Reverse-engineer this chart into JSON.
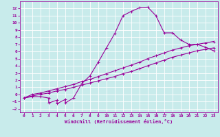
{
  "xlabel": "Windchill (Refroidissement éolien,°C)",
  "bg_color": "#c8ebeb",
  "line_color": "#990099",
  "grid_color": "#ffffff",
  "xlim": [
    -0.5,
    23.5
  ],
  "ylim": [
    -2.5,
    13.0
  ],
  "xticks": [
    0,
    1,
    2,
    3,
    4,
    5,
    6,
    7,
    8,
    9,
    10,
    11,
    12,
    13,
    14,
    15,
    16,
    17,
    18,
    19,
    20,
    21,
    22,
    23
  ],
  "yticks": [
    -2,
    -1,
    0,
    1,
    2,
    3,
    4,
    5,
    6,
    7,
    8,
    9,
    10,
    11,
    12
  ],
  "curve1_x": [
    0,
    1,
    2,
    3,
    3,
    4,
    4,
    5,
    5,
    6,
    7,
    8,
    9,
    10,
    11,
    12,
    13,
    14,
    15,
    16,
    17,
    18,
    19,
    20,
    21,
    22,
    23
  ],
  "curve1_y": [
    -0.5,
    -0.3,
    -0.3,
    -0.5,
    -1.2,
    -0.8,
    -1.3,
    -0.7,
    -1.2,
    -0.5,
    1.5,
    2.6,
    4.5,
    6.5,
    8.5,
    11.0,
    11.6,
    12.1,
    12.2,
    11.0,
    8.6,
    8.6,
    7.6,
    7.0,
    7.0,
    6.6,
    6.1
  ],
  "curve2_x": [
    0,
    1,
    2,
    3,
    4,
    5,
    6,
    7,
    8,
    9,
    10,
    11,
    12,
    13,
    14,
    15,
    16,
    17,
    18,
    19,
    20,
    21,
    22,
    23
  ],
  "curve2_y": [
    -0.5,
    -0.2,
    0.0,
    0.2,
    0.5,
    0.7,
    1.0,
    1.3,
    1.6,
    1.9,
    2.2,
    2.5,
    2.9,
    3.2,
    3.6,
    4.0,
    4.4,
    4.8,
    5.2,
    5.5,
    5.8,
    6.1,
    6.3,
    6.5
  ],
  "curve3_x": [
    0,
    1,
    2,
    3,
    4,
    5,
    6,
    7,
    8,
    9,
    10,
    11,
    12,
    13,
    14,
    15,
    16,
    17,
    18,
    19,
    20,
    21,
    22,
    23
  ],
  "curve3_y": [
    -0.5,
    0.0,
    0.2,
    0.5,
    0.8,
    1.1,
    1.4,
    1.8,
    2.1,
    2.5,
    2.9,
    3.3,
    3.7,
    4.1,
    4.5,
    5.0,
    5.4,
    5.8,
    6.2,
    6.5,
    6.8,
    7.0,
    7.2,
    7.4
  ]
}
